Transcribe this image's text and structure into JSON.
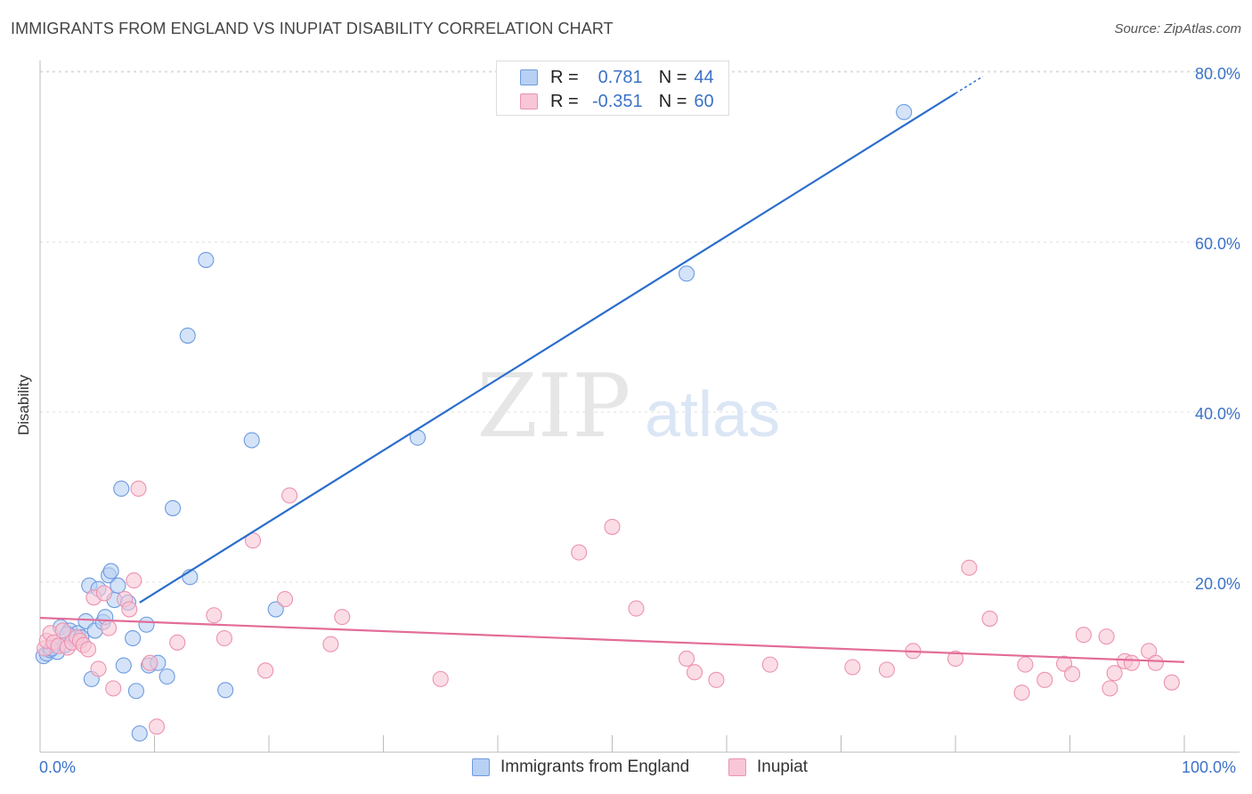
{
  "chart_data": {
    "type": "scatter",
    "title": "IMMIGRANTS FROM ENGLAND VS INUPIAT DISABILITY CORRELATION CHART",
    "source": "Source: ZipAtlas.com",
    "watermark": {
      "zip": "ZIP",
      "atlas": "atlas"
    },
    "xlabel": "",
    "ylabel": "Disability",
    "xlim": [
      0,
      100
    ],
    "ylim": [
      0,
      82
    ],
    "x_tick_labels": {
      "min": "0.0%",
      "max": "100.0%"
    },
    "y_ticks": [
      {
        "value": 20,
        "label": "20.0%"
      },
      {
        "value": 40,
        "label": "40.0%"
      },
      {
        "value": 60,
        "label": "60.0%"
      },
      {
        "value": 80,
        "label": "80.0%"
      }
    ],
    "x_minor_ticks": [
      10,
      20,
      30,
      40,
      50,
      60,
      70,
      80,
      90,
      100
    ],
    "grid": true,
    "legend": {
      "placement": "top-center",
      "entries": [
        {
          "r_label": "R =",
          "r_value": "0.781",
          "n_label": "N =",
          "n_value": "44"
        },
        {
          "r_label": "R =",
          "r_value": "-0.351",
          "n_label": "N =",
          "n_value": "60"
        }
      ]
    },
    "series": [
      {
        "name": "Immigrants from England",
        "color": "#6d9be0",
        "fill": "#b8d0f3",
        "line_color": "#2b6ecb",
        "trend": {
          "x1": 8.7,
          "y1": 17.6,
          "x2": 80.0,
          "y2": 77.5,
          "dash_x2": 82.4,
          "dash_y2": 79.5
        },
        "points": [
          [
            0.3,
            11.3
          ],
          [
            0.6,
            11.6
          ],
          [
            0.9,
            12.0
          ],
          [
            1.2,
            12.5
          ],
          [
            1.5,
            11.8
          ],
          [
            1.8,
            14.7
          ],
          [
            2.2,
            12.6
          ],
          [
            2.6,
            14.3
          ],
          [
            3.0,
            13.3
          ],
          [
            3.3,
            14.0
          ],
          [
            3.6,
            13.5
          ],
          [
            4.0,
            15.4
          ],
          [
            4.3,
            19.6
          ],
          [
            4.5,
            8.6
          ],
          [
            4.8,
            14.3
          ],
          [
            5.1,
            19.2
          ],
          [
            5.5,
            15.3
          ],
          [
            5.7,
            15.9
          ],
          [
            6.0,
            20.8
          ],
          [
            6.2,
            21.3
          ],
          [
            6.5,
            17.9
          ],
          [
            6.8,
            19.6
          ],
          [
            7.1,
            31.0
          ],
          [
            7.3,
            10.2
          ],
          [
            7.7,
            17.6
          ],
          [
            8.1,
            13.4
          ],
          [
            8.4,
            7.2
          ],
          [
            8.7,
            2.2
          ],
          [
            9.3,
            15.0
          ],
          [
            9.5,
            10.2
          ],
          [
            10.3,
            10.5
          ],
          [
            11.1,
            8.9
          ],
          [
            11.6,
            28.7
          ],
          [
            12.9,
            49.0
          ],
          [
            13.1,
            20.6
          ],
          [
            14.5,
            57.9
          ],
          [
            16.2,
            7.3
          ],
          [
            18.5,
            36.7
          ],
          [
            20.6,
            16.8
          ],
          [
            33.0,
            37.0
          ],
          [
            56.5,
            56.3
          ],
          [
            75.5,
            75.3
          ],
          [
            2.4,
            13.9
          ],
          [
            1.0,
            12.2
          ]
        ]
      },
      {
        "name": "Inupiat",
        "color": "#ec93b0",
        "fill": "#f8c6d6",
        "line_color": "#e36c98",
        "trend": {
          "x1": 0.0,
          "y1": 15.8,
          "x2": 100.0,
          "y2": 10.6
        },
        "points": [
          [
            0.4,
            12.2
          ],
          [
            0.6,
            13.1
          ],
          [
            0.9,
            14.0
          ],
          [
            1.2,
            12.9
          ],
          [
            1.6,
            12.5
          ],
          [
            2.0,
            14.3
          ],
          [
            2.4,
            12.3
          ],
          [
            2.8,
            12.9
          ],
          [
            3.2,
            13.5
          ],
          [
            3.5,
            13.1
          ],
          [
            3.8,
            12.6
          ],
          [
            4.2,
            12.1
          ],
          [
            4.7,
            18.2
          ],
          [
            5.1,
            9.8
          ],
          [
            5.6,
            18.7
          ],
          [
            6.0,
            14.6
          ],
          [
            6.4,
            7.5
          ],
          [
            7.4,
            18.0
          ],
          [
            7.8,
            16.8
          ],
          [
            8.2,
            20.2
          ],
          [
            8.6,
            31.0
          ],
          [
            9.6,
            10.5
          ],
          [
            10.2,
            3.0
          ],
          [
            12.0,
            12.9
          ],
          [
            15.2,
            16.1
          ],
          [
            16.1,
            13.4
          ],
          [
            18.6,
            24.9
          ],
          [
            19.7,
            9.6
          ],
          [
            21.4,
            18.0
          ],
          [
            21.8,
            30.2
          ],
          [
            25.4,
            12.7
          ],
          [
            26.4,
            15.9
          ],
          [
            35.0,
            8.6
          ],
          [
            47.1,
            23.5
          ],
          [
            50.0,
            26.5
          ],
          [
            52.1,
            16.9
          ],
          [
            56.5,
            11.0
          ],
          [
            57.2,
            9.4
          ],
          [
            59.1,
            8.5
          ],
          [
            63.8,
            10.3
          ],
          [
            71.0,
            10.0
          ],
          [
            74.0,
            9.7
          ],
          [
            76.3,
            11.9
          ],
          [
            80.0,
            11.0
          ],
          [
            81.2,
            21.7
          ],
          [
            83.0,
            15.7
          ],
          [
            85.8,
            7.0
          ],
          [
            86.1,
            10.3
          ],
          [
            87.8,
            8.5
          ],
          [
            89.5,
            10.4
          ],
          [
            90.2,
            9.2
          ],
          [
            91.2,
            13.8
          ],
          [
            93.2,
            13.6
          ],
          [
            93.5,
            7.5
          ],
          [
            93.9,
            9.3
          ],
          [
            94.8,
            10.7
          ],
          [
            95.4,
            10.5
          ],
          [
            96.9,
            11.9
          ],
          [
            97.5,
            10.5
          ],
          [
            98.9,
            8.2
          ]
        ]
      }
    ]
  }
}
